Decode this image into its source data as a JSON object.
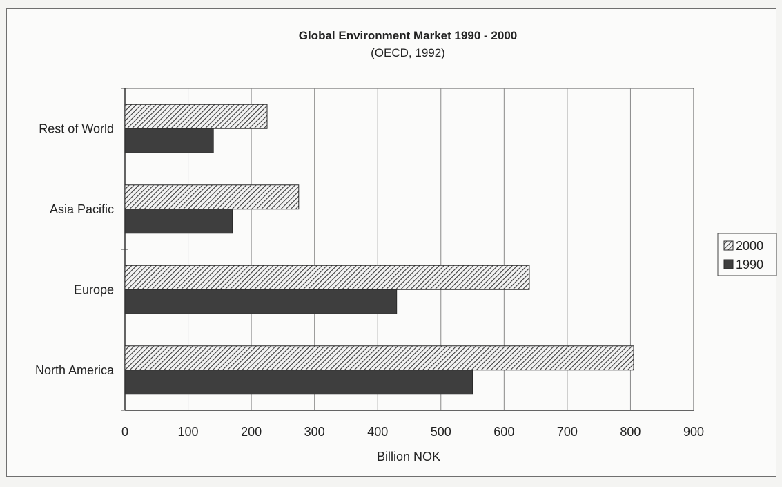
{
  "chart_data": {
    "type": "bar",
    "orientation": "horizontal",
    "title": "Global Environment Market 1990 - 2000",
    "subtitle": "(OECD, 1992)",
    "xlabel": "Billion NOK",
    "ylabel": "",
    "xlim": [
      0,
      900
    ],
    "xticks": [
      "0",
      "100",
      "200",
      "300",
      "400",
      "500",
      "600",
      "700",
      "800",
      "900"
    ],
    "categories": [
      "Rest of World",
      "Asia Pacific",
      "Europe",
      "North America"
    ],
    "series": [
      {
        "name": "2000",
        "values": [
          225,
          275,
          640,
          805
        ],
        "color": "#3a3a3a",
        "pattern": "hatched"
      },
      {
        "name": "1990",
        "values": [
          140,
          170,
          430,
          550
        ],
        "color": "#3e3e3e",
        "pattern": "solid"
      }
    ],
    "grid": "vertical",
    "legend_position": "right"
  }
}
